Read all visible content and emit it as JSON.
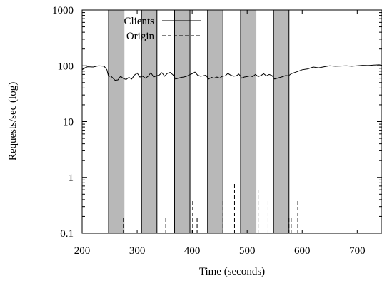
{
  "chart_data": {
    "type": "line",
    "xlabel": "Time (seconds)",
    "ylabel": "Requests/sec (log)",
    "xlim": [
      200,
      745
    ],
    "ylim": [
      0.1,
      1000
    ],
    "yscale": "log",
    "x_ticks": [
      200,
      300,
      400,
      500,
      600,
      700
    ],
    "y_ticks": [
      0.1,
      1,
      10,
      100,
      1000
    ],
    "y_tick_labels": [
      "0.1",
      "1",
      "10",
      "100",
      "1000"
    ],
    "legend": {
      "placement": "top-left",
      "entries": [
        "Clients",
        "Origin"
      ]
    },
    "shaded_intervals": [
      [
        248,
        276
      ],
      [
        308,
        336
      ],
      [
        368,
        396
      ],
      [
        428,
        456
      ],
      [
        488,
        516
      ],
      [
        548,
        576
      ]
    ],
    "series": [
      {
        "name": "Clients",
        "style": "solid",
        "x": [
          200,
          205,
          210,
          220,
          230,
          240,
          245,
          248,
          252,
          256,
          260,
          265,
          270,
          275,
          280,
          285,
          290,
          295,
          300,
          305,
          310,
          315,
          320,
          325,
          330,
          335,
          340,
          345,
          350,
          355,
          360,
          365,
          370,
          375,
          380,
          385,
          390,
          395,
          400,
          405,
          410,
          415,
          420,
          425,
          430,
          435,
          440,
          445,
          450,
          455,
          460,
          465,
          470,
          475,
          480,
          485,
          490,
          495,
          500,
          505,
          510,
          515,
          520,
          525,
          530,
          535,
          540,
          545,
          550,
          555,
          560,
          565,
          570,
          575,
          580,
          590,
          600,
          610,
          620,
          630,
          640,
          650,
          660,
          670,
          680,
          690,
          700,
          710,
          720,
          730,
          740,
          745
        ],
        "values": [
          85,
          92,
          96,
          95,
          100,
          98,
          85,
          64,
          66,
          60,
          55,
          56,
          65,
          59,
          57,
          62,
          58,
          68,
          74,
          63,
          65,
          60,
          65,
          75,
          63,
          66,
          68,
          75,
          65,
          73,
          76,
          69,
          58,
          60,
          62,
          63,
          65,
          69,
          72,
          77,
          68,
          65,
          66,
          68,
          58,
          62,
          60,
          63,
          60,
          65,
          66,
          73,
          68,
          65,
          66,
          71,
          60,
          63,
          64,
          66,
          64,
          70,
          64,
          67,
          72,
          66,
          70,
          67,
          58,
          60,
          62,
          64,
          67,
          66,
          72,
          78,
          85,
          88,
          95,
          92,
          96,
          100,
          98,
          99,
          100,
          98,
          100,
          102,
          101,
          103,
          104,
          102
        ]
      },
      {
        "name": "Origin",
        "style": "dashed",
        "spikes": [
          {
            "x": 275,
            "y": 0.2
          },
          {
            "x": 352,
            "y": 0.2
          },
          {
            "x": 401,
            "y": 0.4
          },
          {
            "x": 409,
            "y": 0.2
          },
          {
            "x": 456,
            "y": 0.4
          },
          {
            "x": 477,
            "y": 0.8
          },
          {
            "x": 520,
            "y": 0.6
          },
          {
            "x": 538,
            "y": 0.4
          },
          {
            "x": 576,
            "y": 0.2
          },
          {
            "x": 580,
            "y": 0.2
          },
          {
            "x": 592,
            "y": 0.4
          }
        ]
      }
    ]
  }
}
